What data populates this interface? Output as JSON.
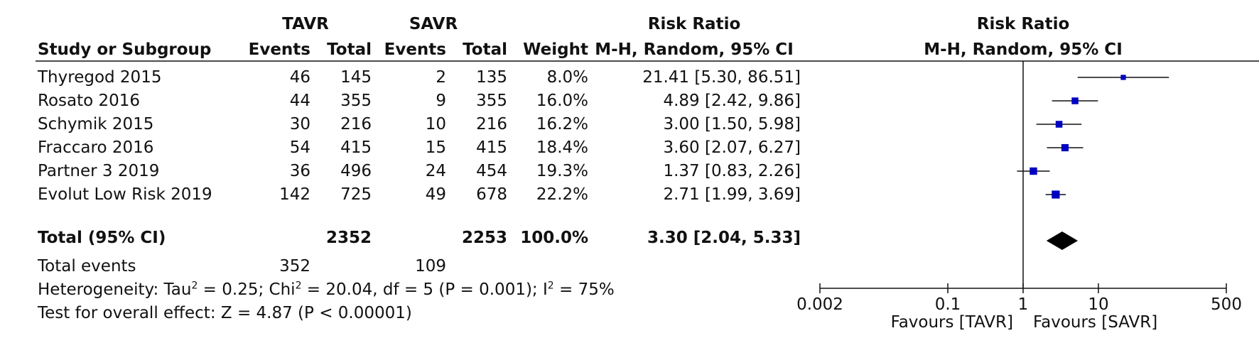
{
  "header": {
    "group_tavr": "TAVR",
    "group_savr": "SAVR",
    "risk_ratio": "Risk Ratio",
    "col_study": "Study or Subgroup",
    "col_events": "Events",
    "col_total": "Total",
    "col_weight": "Weight",
    "col_method": "M-H, Random, 95% CI",
    "plot_title": "Risk Ratio",
    "plot_method": "M-H, Random, 95% CI"
  },
  "studies": [
    {
      "name": "Thyregod 2015",
      "tavr_events": "46",
      "tavr_total": "145",
      "savr_events": "2",
      "savr_total": "135",
      "weight": "8.0%",
      "ci_text": "21.41 [5.30, 86.51]"
    },
    {
      "name": "Rosato 2016",
      "tavr_events": "44",
      "tavr_total": "355",
      "savr_events": "9",
      "savr_total": "355",
      "weight": "16.0%",
      "ci_text": "4.89 [2.42, 9.86]"
    },
    {
      "name": "Schymik 2015",
      "tavr_events": "30",
      "tavr_total": "216",
      "savr_events": "10",
      "savr_total": "216",
      "weight": "16.2%",
      "ci_text": "3.00 [1.50, 5.98]"
    },
    {
      "name": "Fraccaro 2016",
      "tavr_events": "54",
      "tavr_total": "415",
      "savr_events": "15",
      "savr_total": "415",
      "weight": "18.4%",
      "ci_text": "3.60 [2.07, 6.27]"
    },
    {
      "name": "Partner 3 2019",
      "tavr_events": "36",
      "tavr_total": "496",
      "savr_events": "24",
      "savr_total": "454",
      "weight": "19.3%",
      "ci_text": "1.37 [0.83, 2.26]"
    },
    {
      "name": "Evolut Low Risk 2019",
      "tavr_events": "142",
      "tavr_total": "725",
      "savr_events": "49",
      "savr_total": "678",
      "weight": "22.2%",
      "ci_text": "2.71 [1.99, 3.69]"
    }
  ],
  "total": {
    "label": "Total (95% CI)",
    "tavr_total": "2352",
    "savr_total": "2253",
    "weight": "100.0%",
    "ci_text": "3.30 [2.04, 5.33]"
  },
  "events": {
    "label": "Total events",
    "tavr": "352",
    "savr": "109"
  },
  "heterogeneity": {
    "prefix": "Heterogeneity: Tau",
    "tau": " = 0.25; Chi",
    "chi": " = 20.04, df = 5 (P = 0.001); I",
    "i2": " = 75%",
    "sup": "2"
  },
  "overall_effect": "Test for overall effect: Z = 4.87 (P < 0.00001)",
  "axis": {
    "favours_left": "Favours [TAVR]",
    "favours_right": "Favours [SAVR]"
  },
  "chart_data": {
    "type": "forest",
    "x_scale": "log",
    "xlim": [
      0.002,
      500
    ],
    "ticks": [
      0.002,
      0.1,
      1,
      10,
      500
    ],
    "tick_labels": [
      "0.002",
      "0.1",
      "1",
      "10",
      "500"
    ],
    "reference_line": 1,
    "marker_color": "#0000c0",
    "studies": [
      {
        "name": "Thyregod 2015",
        "rr": 21.41,
        "lo": 5.3,
        "hi": 86.51,
        "weight": 8.0
      },
      {
        "name": "Rosato 2016",
        "rr": 4.89,
        "lo": 2.42,
        "hi": 9.86,
        "weight": 16.0
      },
      {
        "name": "Schymik 2015",
        "rr": 3.0,
        "lo": 1.5,
        "hi": 5.98,
        "weight": 16.2
      },
      {
        "name": "Fraccaro 2016",
        "rr": 3.6,
        "lo": 2.07,
        "hi": 6.27,
        "weight": 18.4
      },
      {
        "name": "Partner 3 2019",
        "rr": 1.37,
        "lo": 0.83,
        "hi": 2.26,
        "weight": 19.3
      },
      {
        "name": "Evolut Low Risk 2019",
        "rr": 2.71,
        "lo": 1.99,
        "hi": 3.69,
        "weight": 22.2
      }
    ],
    "pooled": {
      "rr": 3.3,
      "lo": 2.04,
      "hi": 5.33
    }
  }
}
